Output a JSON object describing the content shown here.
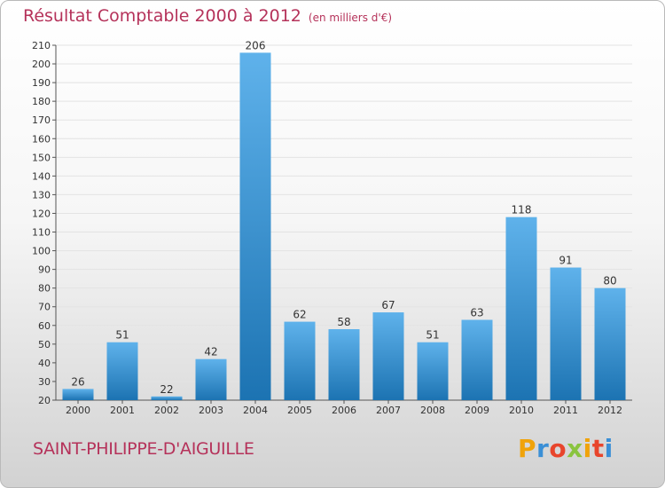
{
  "title": "Résultat Comptable 2000 à 2012",
  "unit_note": "(en milliers d'€)",
  "commune": "SAINT-PHILIPPE-D'AIGUILLE",
  "logo": "Proxiti",
  "colors": {
    "title": "#b5325a",
    "bar_light": "#5fb2eb",
    "bar_dark": "#1c73b2",
    "grid": "#e3e3e3",
    "logo_letters": [
      "#f0a30a",
      "#3a8fd6",
      "#e8452c",
      "#8ac43f",
      "#f0a30a",
      "#e8452c",
      "#3a8fd6"
    ]
  },
  "chart_data": {
    "type": "bar",
    "title": "Résultat Comptable 2000 à 2012",
    "xlabel": "",
    "ylabel": "",
    "categories": [
      "2000",
      "2001",
      "2002",
      "2003",
      "2004",
      "2005",
      "2006",
      "2007",
      "2008",
      "2009",
      "2010",
      "2011",
      "2012"
    ],
    "values": [
      26,
      51,
      22,
      42,
      206,
      62,
      58,
      67,
      51,
      63,
      118,
      91,
      80
    ],
    "ylim": [
      20,
      210
    ],
    "ytick_step": 10,
    "grid": true,
    "data_labels": true
  }
}
